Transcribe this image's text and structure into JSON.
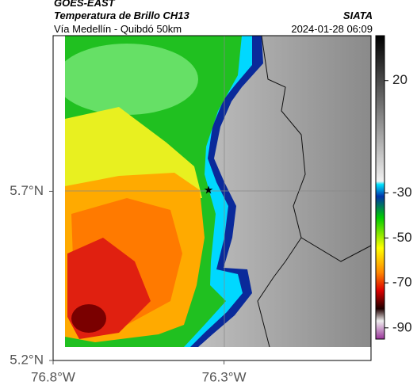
{
  "header": {
    "source": "GOES-EAST",
    "product": "Temperatura de Brillo CH13",
    "route": "Vía Medellín - Quibdó 50km",
    "agency": "SIATA",
    "datetime": "2024-01-28 06:09"
  },
  "map": {
    "xlim": [
      -76.8,
      -75.87
    ],
    "ylim": [
      5.2,
      6.16
    ],
    "xticks": [
      {
        "value": -76.8,
        "label": "76.8°W"
      },
      {
        "value": -76.3,
        "label": "76.3°W"
      }
    ],
    "yticks": [
      {
        "value": 5.7,
        "label": "5.7°N"
      },
      {
        "value": 5.2,
        "label": "5.2°N"
      }
    ]
  },
  "colorbar": {
    "lim": [
      40,
      -95
    ],
    "ticks": [
      20,
      -30,
      -50,
      -70,
      -90
    ]
  }
}
